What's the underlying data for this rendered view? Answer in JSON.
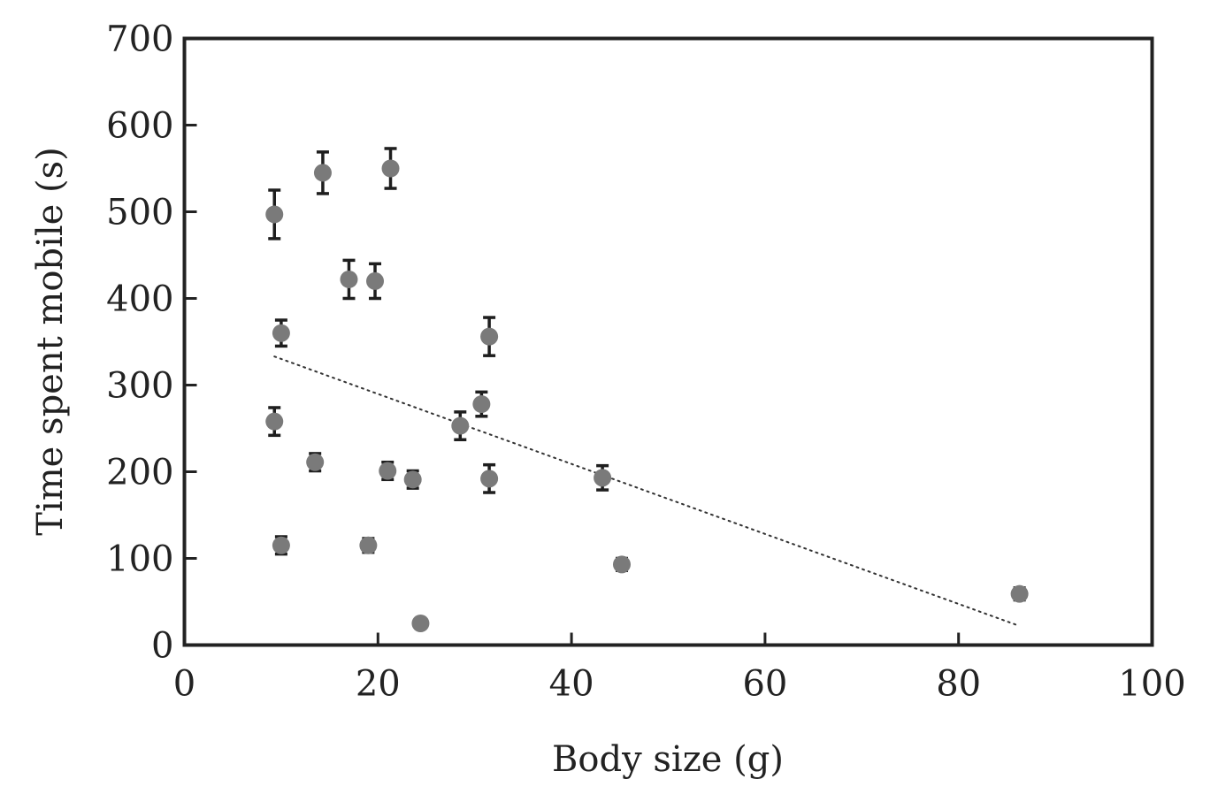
{
  "chart_data": {
    "type": "scatter",
    "title": "",
    "xlabel": "Body size (g)",
    "ylabel": "Time spent mobile (s)",
    "xlim": [
      0,
      100
    ],
    "ylim": [
      0,
      700
    ],
    "xticks": [
      0,
      20,
      40,
      60,
      80,
      100
    ],
    "yticks": [
      0,
      100,
      200,
      300,
      400,
      500,
      600,
      700
    ],
    "xtick_labels": [
      "0",
      "20",
      "40",
      "60",
      "80",
      "100"
    ],
    "ytick_labels": [
      "0",
      "100",
      "200",
      "300",
      "400",
      "500",
      "600",
      "700"
    ],
    "grid": false,
    "legend": "none",
    "colors": {
      "marker": "#7a7a7a",
      "error_bar": "#1e1e1e",
      "axis": "#222222",
      "trend": "#333333"
    },
    "points": [
      {
        "x": 9.3,
        "y": 497,
        "err": 28
      },
      {
        "x": 14.3,
        "y": 545,
        "err": 24
      },
      {
        "x": 21.3,
        "y": 550,
        "err": 23
      },
      {
        "x": 17.0,
        "y": 422,
        "err": 22
      },
      {
        "x": 19.7,
        "y": 420,
        "err": 20
      },
      {
        "x": 10.0,
        "y": 360,
        "err": 15
      },
      {
        "x": 31.5,
        "y": 356,
        "err": 22
      },
      {
        "x": 30.7,
        "y": 278,
        "err": 14
      },
      {
        "x": 28.5,
        "y": 253,
        "err": 16
      },
      {
        "x": 9.3,
        "y": 258,
        "err": 16
      },
      {
        "x": 13.5,
        "y": 211,
        "err": 10
      },
      {
        "x": 21.0,
        "y": 201,
        "err": 10
      },
      {
        "x": 23.6,
        "y": 191,
        "err": 10
      },
      {
        "x": 31.5,
        "y": 192,
        "err": 16
      },
      {
        "x": 43.2,
        "y": 193,
        "err": 14
      },
      {
        "x": 10.0,
        "y": 115,
        "err": 10
      },
      {
        "x": 19.0,
        "y": 115,
        "err": 8
      },
      {
        "x": 45.2,
        "y": 93,
        "err": 7
      },
      {
        "x": 24.4,
        "y": 25,
        "err": 0
      },
      {
        "x": 86.3,
        "y": 59,
        "err": 7
      }
    ],
    "trendline": {
      "style": "dotted",
      "x": [
        9.3,
        86.3
      ],
      "y": [
        333,
        22
      ]
    }
  }
}
